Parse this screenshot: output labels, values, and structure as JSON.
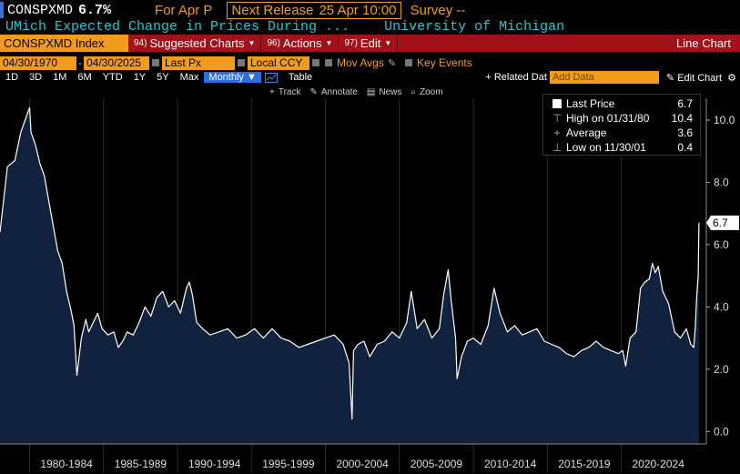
{
  "header": {
    "ticker": "CONSPXMD",
    "last_value": "6.7%",
    "for_label": "For Apr P",
    "next_release_label": "Next Release",
    "next_release_date": "25 Apr 10:00",
    "survey_label": "Survey --"
  },
  "description": {
    "name": "UMich Expected Change in Prices During ...",
    "source": "University of Michigan"
  },
  "toolbar": {
    "security": "CONSPXMD Index",
    "suggested_num": "94)",
    "suggested_label": "Suggested Charts",
    "actions_num": "96)",
    "actions_label": "Actions",
    "edit_num": "97)",
    "edit_label": "Edit",
    "chart_title": "Line Chart"
  },
  "settings": {
    "start_date": "04/30/1970",
    "end_date": "04/30/2025",
    "field": "Last Px",
    "currency": "Local CCY",
    "mov_avgs": "Mov Avgs",
    "key_events": "Key Events"
  },
  "periods": [
    "1D",
    "3D",
    "1M",
    "6M",
    "YTD",
    "1Y",
    "5Y",
    "Max"
  ],
  "frequency": "Monthly ▼",
  "table_label": "Table",
  "related_label": "+ Related Dat",
  "add_data_placeholder": "Add Data",
  "edit_chart_label": "Edit Chart",
  "chart_tools": {
    "track": "Track",
    "annotate": "Annotate",
    "news": "News",
    "zoom": "Zoom"
  },
  "legend": {
    "last_label": "Last Price",
    "last_value": "6.7",
    "high_label": "High on 01/31/80",
    "high_value": "10.4",
    "avg_label": "Average",
    "avg_value": "3.6",
    "low_label": "Low on 11/30/01",
    "low_value": "0.4"
  },
  "colors": {
    "accent": "#f39b1d",
    "toolbar": "#a1111a",
    "area_fill": "#10223d",
    "line": "#ffffff",
    "description": "#25c6d8"
  },
  "chart_data": {
    "type": "area",
    "x_categories": [
      "1980-1984",
      "1985-1989",
      "1990-1994",
      "1995-1999",
      "2000-2004",
      "2005-2009",
      "2010-2014",
      "2015-2019",
      "2020-2024"
    ],
    "y_ticks": [
      "0.0",
      "2.0",
      "4.0",
      "6.0",
      "8.0",
      "10.0"
    ],
    "ylim": [
      -0.4,
      10.7
    ],
    "last_value_label": "6.7",
    "series": [
      {
        "x": [
          1978.0,
          1978.5,
          1979.0,
          1979.4,
          1979.7,
          1980.0,
          1980.1,
          1980.4,
          1980.7,
          1981.0,
          1981.3,
          1981.6,
          1981.9,
          1982.2,
          1982.5,
          1982.8,
          1983.0,
          1983.2,
          1983.5,
          1983.8,
          1984.0,
          1984.3,
          1984.6,
          1984.9,
          1985.3,
          1985.7,
          1986.0,
          1986.3,
          1986.6,
          1987.0,
          1987.4,
          1987.8,
          1988.2,
          1988.6,
          1989.0,
          1989.4,
          1989.8,
          1990.2,
          1990.6,
          1990.8,
          1991.0,
          1991.3,
          1991.7,
          1992.2,
          1992.8,
          1993.4,
          1994.0,
          1994.6,
          1995.2,
          1995.8,
          1996.4,
          1997.0,
          1997.6,
          1998.2,
          1998.8,
          1999.4,
          2000.0,
          2000.6,
          2001.2,
          2001.6,
          2001.8,
          2001.9,
          2002.2,
          2002.6,
          2003.0,
          2003.5,
          2004.0,
          2004.5,
          2005.0,
          2005.5,
          2005.8,
          2006.2,
          2006.7,
          2007.2,
          2007.7,
          2008.0,
          2008.3,
          2008.5,
          2008.8,
          2008.9,
          2009.2,
          2009.6,
          2010.0,
          2010.5,
          2011.0,
          2011.4,
          2011.8,
          2012.3,
          2012.8,
          2013.3,
          2013.8,
          2014.3,
          2014.8,
          2015.3,
          2015.8,
          2016.3,
          2016.8,
          2017.3,
          2017.8,
          2018.3,
          2018.8,
          2019.3,
          2019.8,
          2020.1,
          2020.3,
          2020.6,
          2021.0,
          2021.3,
          2021.6,
          2021.9,
          2022.1,
          2022.3,
          2022.5,
          2022.8,
          2023.2,
          2023.6,
          2024.0,
          2024.4,
          2024.7,
          2024.9,
          2025.0,
          2025.1,
          2025.2,
          2025.25
        ],
        "y": [
          6.4,
          8.5,
          8.7,
          9.6,
          10.0,
          10.4,
          9.6,
          9.2,
          8.6,
          8.2,
          7.4,
          6.6,
          5.8,
          5.4,
          4.5,
          3.9,
          3.4,
          1.8,
          3.0,
          3.6,
          3.2,
          3.5,
          3.8,
          3.3,
          3.1,
          3.2,
          2.7,
          2.9,
          3.2,
          3.1,
          3.5,
          4.0,
          3.7,
          4.3,
          4.5,
          4.0,
          4.2,
          3.8,
          4.6,
          4.8,
          4.4,
          3.5,
          3.3,
          3.1,
          3.2,
          3.3,
          3.0,
          3.1,
          3.3,
          3.0,
          3.3,
          3.0,
          2.9,
          2.7,
          2.8,
          2.9,
          3.0,
          3.1,
          2.8,
          2.2,
          0.4,
          2.6,
          2.8,
          2.9,
          2.4,
          2.8,
          2.9,
          3.2,
          3.0,
          3.5,
          4.5,
          3.3,
          3.6,
          3.0,
          3.3,
          4.4,
          5.2,
          4.2,
          3.0,
          1.7,
          2.4,
          2.9,
          3.0,
          2.8,
          3.4,
          4.6,
          3.8,
          3.2,
          3.4,
          3.1,
          3.2,
          3.3,
          2.9,
          2.8,
          2.7,
          2.5,
          2.4,
          2.6,
          2.7,
          2.9,
          2.7,
          2.6,
          2.5,
          2.6,
          2.1,
          3.0,
          3.2,
          4.6,
          4.8,
          4.9,
          5.4,
          5.1,
          5.3,
          4.5,
          4.1,
          3.2,
          3.0,
          3.3,
          2.8,
          2.7,
          3.3,
          4.3,
          5.0,
          6.7
        ]
      }
    ]
  }
}
